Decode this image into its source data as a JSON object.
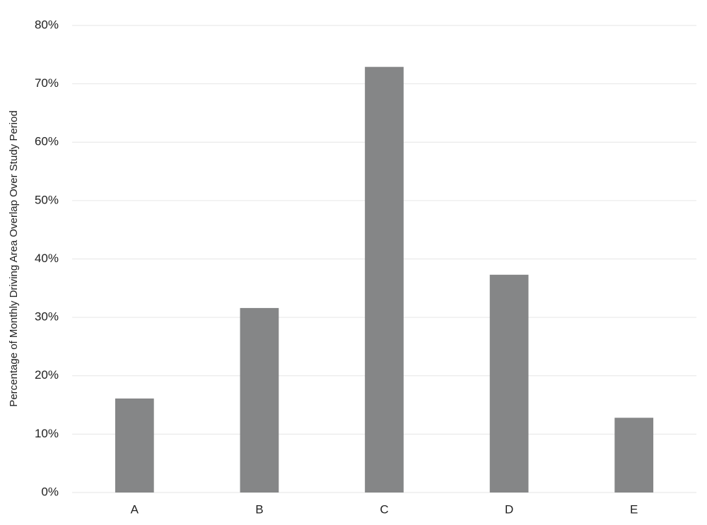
{
  "chart_data": {
    "type": "bar",
    "y_label": "Percentage of Monthly Driving Area Overlap Over Study Period",
    "categories": [
      "A",
      "B",
      "C",
      "D",
      "E"
    ],
    "values": [
      16.1,
      31.6,
      72.9,
      37.3,
      12.8
    ],
    "color": "#858687",
    "ylim": [
      0,
      80
    ],
    "yticks": [
      {
        "value": 0,
        "label": "0%"
      },
      {
        "value": 10,
        "label": "10%"
      },
      {
        "value": 20,
        "label": "20%"
      },
      {
        "value": 30,
        "label": "30%"
      },
      {
        "value": 40,
        "label": "40%"
      },
      {
        "value": 50,
        "label": "50%"
      },
      {
        "value": 60,
        "label": "60%"
      },
      {
        "value": 70,
        "label": "70%"
      },
      {
        "value": 80,
        "label": "80%"
      }
    ],
    "grid": true
  }
}
